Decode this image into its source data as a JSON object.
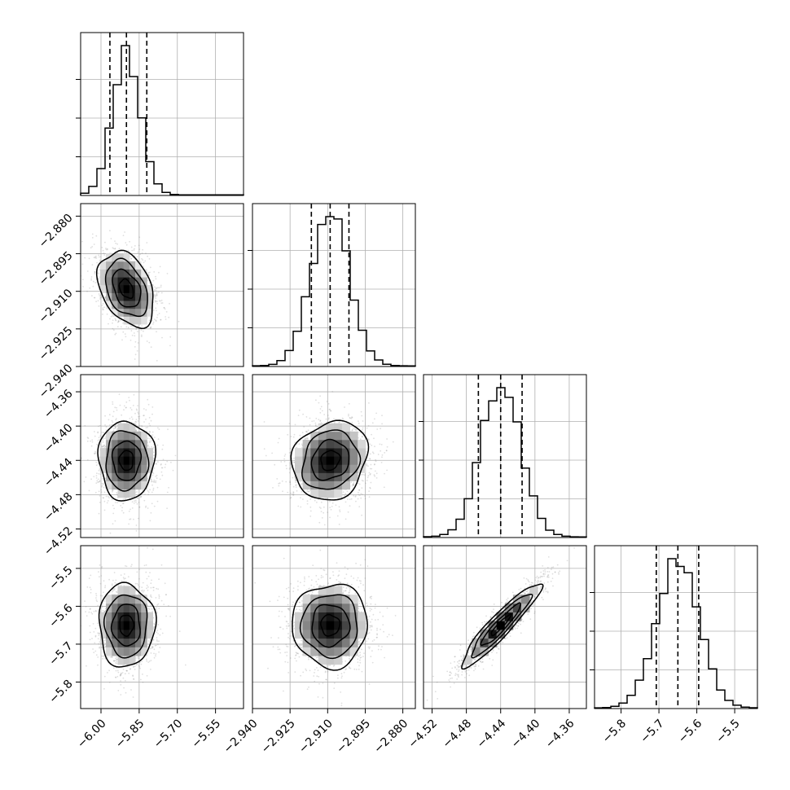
{
  "chart_data": {
    "type": "corner",
    "grid": true,
    "parameters": [
      {
        "mean": -5.9,
        "sd": 0.055,
        "range": [
          -6.08,
          -5.44
        ],
        "ticks": [
          "-6.00",
          "-5.85",
          "-5.70",
          "-5.55"
        ],
        "quantiles": [
          -5.965,
          -5.9,
          -5.82
        ]
      },
      {
        "mean": -2.909,
        "sd": 0.0075,
        "range": [
          -2.94,
          -2.875
        ],
        "ticks": [
          "-2.940",
          "-2.925",
          "-2.910",
          "-2.895",
          "-2.880"
        ],
        "quantiles": [
          -2.9165,
          -2.909,
          -2.9015
        ]
      },
      {
        "mean": -4.44,
        "sd": 0.023,
        "range": [
          -4.53,
          -4.34
        ],
        "ticks": [
          "-4.52",
          "-4.48",
          "-4.44",
          "-4.40",
          "-4.36"
        ],
        "quantiles": [
          -4.466,
          -4.44,
          -4.415
        ]
      },
      {
        "mean": -5.65,
        "sd": 0.055,
        "range": [
          -5.87,
          -5.44
        ],
        "ticks": [
          "-5.8",
          "-5.7",
          "-5.6",
          "-5.5"
        ],
        "quantiles": [
          -5.707,
          -5.65,
          -5.595
        ]
      }
    ],
    "correlations": [
      {
        "row": 1,
        "col": 0,
        "rho": -0.35
      },
      {
        "row": 2,
        "col": 0,
        "rho": 0.0
      },
      {
        "row": 2,
        "col": 1,
        "rho": 0.15
      },
      {
        "row": 3,
        "col": 0,
        "rho": 0.0
      },
      {
        "row": 3,
        "col": 1,
        "rho": 0.0
      },
      {
        "row": 3,
        "col": 2,
        "rho": 0.93
      }
    ],
    "contour_levels_sigma": [
      0.5,
      1.0,
      1.5,
      2.0
    ],
    "colors": {
      "line": "#000000",
      "points": "#8c8c8c",
      "grid": "#b0b0b0"
    }
  }
}
